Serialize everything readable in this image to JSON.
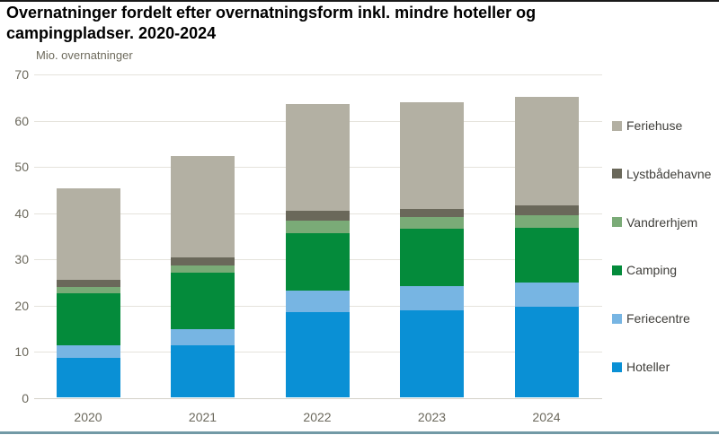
{
  "page": {
    "title_line1": "Overnatninger fordelt efter overnatningsform inkl. mindre hoteller og",
    "title_line2": "campingpladser. 2020-2024",
    "unit_label": "Mio. overnatninger"
  },
  "colors": {
    "title_text": "#000000",
    "axis_text": "#6b685c",
    "legend_text": "#3f3e3a",
    "gridline": "#e5e3dc",
    "top_rule": "#1a1a1a",
    "bottom_rule": "#729aa6"
  },
  "chart_data": {
    "type": "bar",
    "stacked": true,
    "title": "Overnatninger fordelt efter overnatningsform inkl. mindre hoteller og campingpladser. 2020-2024",
    "ylabel": "Mio. overnatninger",
    "xlabel": "",
    "categories": [
      "2020",
      "2021",
      "2022",
      "2023",
      "2024"
    ],
    "series_bottom_to_top": [
      {
        "name": "Hoteller",
        "color": "#0a90d5",
        "values": [
          8.6,
          11.4,
          18.5,
          18.9,
          19.8
        ]
      },
      {
        "name": "Feriecentre",
        "color": "#77b5e3",
        "values": [
          2.8,
          3.5,
          4.7,
          5.2,
          5.1
        ]
      },
      {
        "name": "Camping",
        "color": "#048b3b",
        "values": [
          11.2,
          12.1,
          12.4,
          12.5,
          11.8
        ]
      },
      {
        "name": "Vandrerhjem",
        "color": "#7aab77",
        "values": [
          1.3,
          1.6,
          2.7,
          2.6,
          2.8
        ]
      },
      {
        "name": "Lystbådehavne",
        "color": "#6a685a",
        "values": [
          1.6,
          1.7,
          2.2,
          1.7,
          2.2
        ]
      },
      {
        "name": "Feriehuse",
        "color": "#b3b0a3",
        "values": [
          19.8,
          22.0,
          23.1,
          23.1,
          23.4
        ]
      }
    ],
    "legend_top_to_bottom": [
      "Feriehuse",
      "Lystbådehavne",
      "Vandrerhjem",
      "Camping",
      "Feriecentre",
      "Hoteller"
    ],
    "ylim": [
      0,
      70
    ],
    "yticks": [
      0,
      10,
      20,
      30,
      40,
      50,
      60,
      70
    ],
    "grid": true,
    "legend_position": "right"
  }
}
